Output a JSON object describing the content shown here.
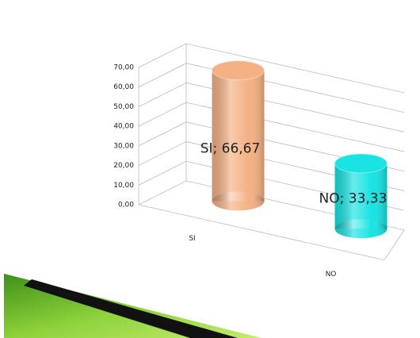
{
  "chart_data": {
    "type": "bar3d",
    "categories": [
      "SI",
      "NO"
    ],
    "values": [
      66.67,
      33.33
    ],
    "value_labels": [
      "SI; 66,67",
      "NO; 33,33"
    ],
    "colors": [
      "#f4b183",
      "#19e3e3"
    ],
    "ylim": [
      0,
      70
    ],
    "yticks": [
      {
        "value": 0,
        "label": "0,00"
      },
      {
        "value": 10,
        "label": "10,00"
      },
      {
        "value": 20,
        "label": "20,00"
      },
      {
        "value": 30,
        "label": "30,00"
      },
      {
        "value": 40,
        "label": "40,00"
      },
      {
        "value": 50,
        "label": "50,00"
      },
      {
        "value": 60,
        "label": "60,00"
      },
      {
        "value": 70,
        "label": "70,00"
      }
    ],
    "grid": true
  }
}
